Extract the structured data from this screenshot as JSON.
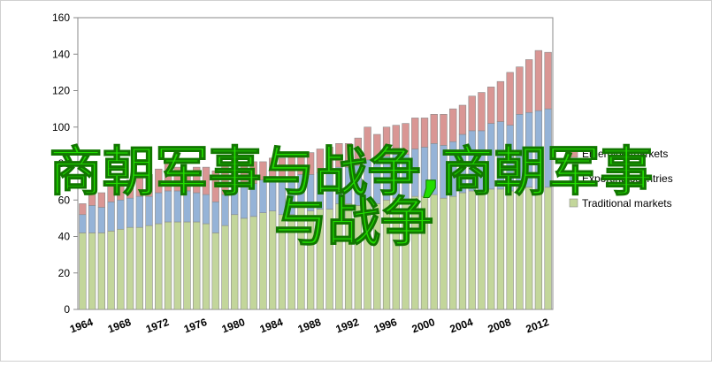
{
  "chart_data": {
    "type": "stacked_bar",
    "categories": [
      "1964",
      null,
      null,
      null,
      "1968",
      null,
      null,
      null,
      "1972",
      null,
      null,
      null,
      "1976",
      null,
      null,
      null,
      "1980",
      null,
      null,
      null,
      "1984",
      null,
      null,
      null,
      "1988",
      null,
      null,
      null,
      "1992",
      null,
      null,
      null,
      "1996",
      null,
      null,
      null,
      "2000",
      null,
      null,
      null,
      "2004",
      null,
      null,
      null,
      "2008",
      null,
      null,
      null,
      "2012",
      null
    ],
    "series": [
      {
        "name": "Traditional markets",
        "color": "#c3d69b",
        "values": [
          42,
          42,
          42,
          43,
          44,
          45,
          45,
          46,
          47,
          48,
          48,
          48,
          48,
          47,
          42,
          46,
          52,
          50,
          51,
          53,
          54,
          52,
          52,
          56,
          54,
          55,
          55,
          58,
          58,
          57,
          60,
          58,
          60,
          61,
          60,
          62,
          62,
          63,
          61,
          62,
          64,
          65,
          64,
          66,
          66,
          65,
          67,
          67,
          66,
          67
        ]
      },
      {
        "name": "Exporting countries",
        "color": "#95b3d7",
        "values": [
          10,
          15,
          14,
          16,
          16,
          16,
          17,
          16,
          17,
          17,
          17,
          17,
          16,
          16,
          17,
          17,
          16,
          17,
          18,
          18,
          19,
          20,
          20,
          18,
          20,
          20,
          21,
          20,
          20,
          22,
          22,
          22,
          24,
          24,
          25,
          26,
          27,
          28,
          29,
          30,
          32,
          33,
          34,
          36,
          37,
          36,
          40,
          41,
          43,
          43
        ]
      },
      {
        "name": "Emerging markets",
        "color": "#d99694",
        "values": [
          6,
          7,
          8,
          9,
          10,
          10,
          11,
          12,
          13,
          15,
          13,
          11,
          14,
          15,
          17,
          17,
          14,
          13,
          12,
          10,
          10,
          11,
          12,
          12,
          12,
          13,
          13,
          13,
          13,
          15,
          18,
          16,
          16,
          16,
          17,
          17,
          16,
          16,
          17,
          18,
          16,
          19,
          21,
          20,
          22,
          29,
          26,
          29,
          33,
          31
        ]
      }
    ],
    "ylim": [
      0,
      160
    ],
    "yticks": [
      0,
      20,
      40,
      60,
      80,
      100,
      120,
      140,
      160
    ],
    "grid": false,
    "legend": "right",
    "watermark": [
      "商朝军事与战争,商朝军事",
      "与战争"
    ],
    "watermark_color": "#22dd00"
  }
}
